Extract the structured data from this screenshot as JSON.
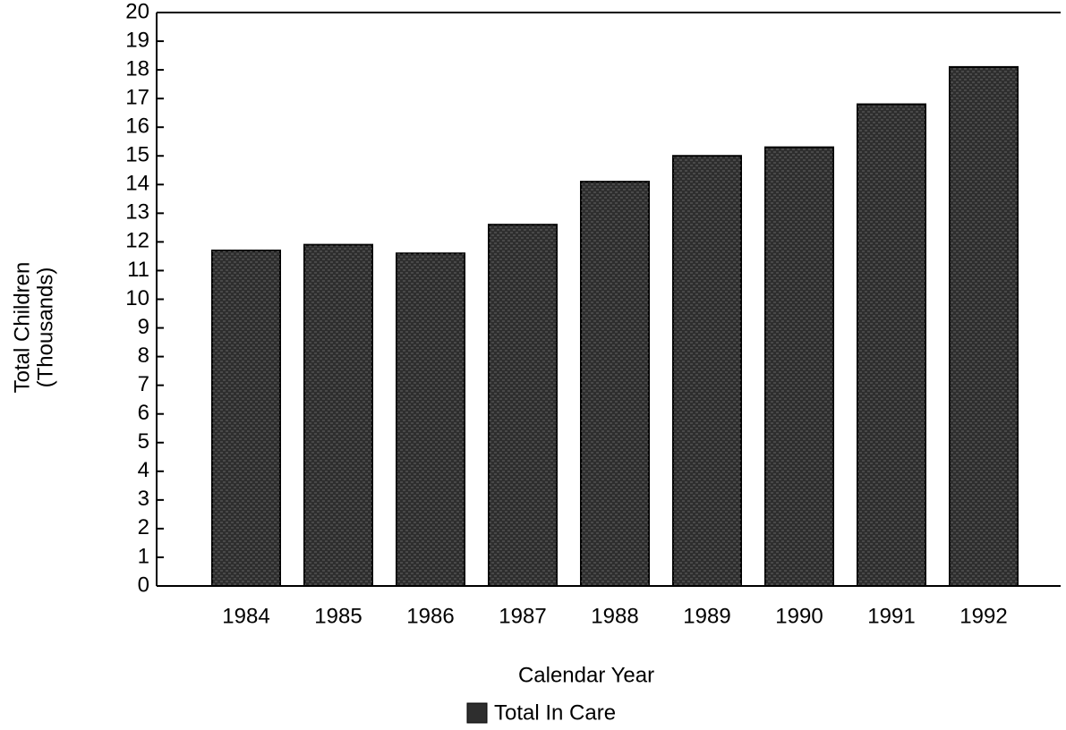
{
  "chart_data": {
    "type": "bar",
    "ylabel": [
      "Total Children",
      "(Thousands)"
    ],
    "xlabel": "Calendar Year",
    "categories": [
      "1984",
      "1985",
      "1986",
      "1987",
      "1988",
      "1989",
      "1990",
      "1991",
      "1992"
    ],
    "series": [
      {
        "name": "Total In Care",
        "color": "#2e2e2e",
        "values": [
          11.7,
          11.9,
          11.6,
          12.6,
          14.1,
          15.0,
          15.3,
          16.8,
          18.1
        ]
      }
    ],
    "ylim": [
      0,
      20
    ],
    "yticks": [
      0,
      1,
      2,
      3,
      4,
      5,
      6,
      7,
      8,
      9,
      10,
      11,
      12,
      13,
      14,
      15,
      16,
      17,
      18,
      19,
      20
    ],
    "legend": "bottom"
  }
}
